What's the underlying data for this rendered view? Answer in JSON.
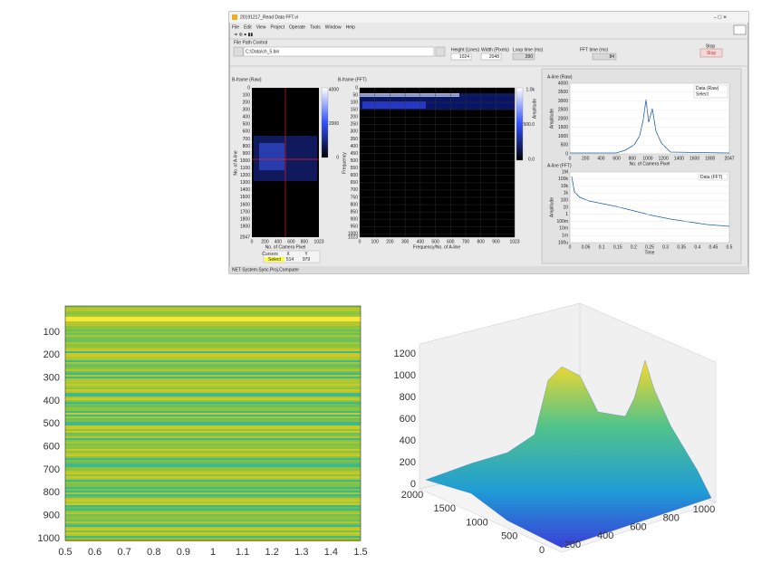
{
  "window": {
    "title": "20191217_Read Data FFT.vi",
    "menu": [
      "File",
      "Edit",
      "View",
      "Project",
      "Operate",
      "Tools",
      "Window",
      "Help"
    ],
    "status": "NET System.Sync.Proj.Computer"
  },
  "controls": {
    "file_path_label": "File Path Control",
    "file_path": "C:\\Data\\ch_5.bin",
    "height_label": "Height (Lines)",
    "height": 1024,
    "width_label": "Width (Pixels)",
    "width": 2048,
    "loop_label": "Loop time (ms)",
    "loop": 280,
    "fft_label": "FFT time (ms)",
    "fft": 84,
    "stop_label": "Stop",
    "stop_button": "Stop"
  },
  "bframe_raw": {
    "title": "B-frame (Raw)",
    "xlabel": "No. of Camera Pixel",
    "ylabel": "No. of A-line",
    "xticks": [
      0,
      200,
      400,
      600,
      800,
      1023
    ],
    "yticks": [
      0,
      100,
      200,
      300,
      400,
      500,
      600,
      700,
      800,
      900,
      1000,
      1100,
      1200,
      1300,
      1400,
      1500,
      1600,
      1700,
      1800,
      1900,
      2047
    ],
    "colorbar": [
      4000,
      2000,
      0
    ],
    "cursor": {
      "header": [
        "Cursors",
        "X",
        "Y"
      ],
      "name": "Select",
      "x": 514,
      "y": 979
    }
  },
  "bframe_fft": {
    "title": "B-frame (FFT)",
    "xlabel": "Frequency/No. of A-line",
    "ylabel": "Frequency",
    "xticks": [
      0,
      100,
      200,
      300,
      400,
      500,
      600,
      700,
      800,
      900,
      1023
    ],
    "yticks": [
      0,
      50,
      100,
      150,
      200,
      250,
      300,
      350,
      400,
      450,
      500,
      550,
      600,
      650,
      700,
      750,
      800,
      850,
      900,
      950,
      1000,
      1023
    ],
    "colorbar": [
      "1.0k",
      "500.0",
      "0.0"
    ],
    "colorbar_label": "Amplitude"
  },
  "aline_raw": {
    "title": "A-line (Raw)",
    "xlabel": "No. of Camera Pixel",
    "ylabel": "Amplitude",
    "xticks": [
      0,
      200,
      400,
      600,
      800,
      1000,
      1200,
      1400,
      1600,
      1800,
      2047
    ],
    "yticks": [
      4000,
      3500,
      3000,
      2500,
      2000,
      1500,
      1000,
      500,
      0
    ],
    "legend": [
      "Data (Raw)",
      "Select"
    ]
  },
  "aline_fft": {
    "title": "A-line (FFT)",
    "xlabel": "Time",
    "ylabel": "Amplitude",
    "xticks": [
      0,
      0.05,
      0.1,
      0.15,
      0.2,
      0.25,
      0.3,
      0.35,
      0.4,
      0.45,
      0.5
    ],
    "yticks": [
      "1M",
      "100k",
      "10k",
      "1k",
      "100",
      "10",
      "1",
      "100m",
      "10m",
      "1m",
      "100u"
    ],
    "legend": [
      "Data (FFT)"
    ]
  },
  "image_plot": {
    "xticks": [
      0.5,
      0.6,
      0.7,
      0.8,
      0.9,
      1,
      1.1,
      1.2,
      1.3,
      1.4,
      1.5
    ],
    "yticks": [
      100,
      200,
      300,
      400,
      500,
      600,
      700,
      800,
      900,
      1000
    ]
  },
  "surface_plot": {
    "zticks": [
      0,
      200,
      400,
      600,
      800,
      1000,
      1200
    ],
    "yticks": [
      0,
      500,
      1000,
      1500,
      2000
    ],
    "xticks": [
      200,
      400,
      600,
      800,
      1000
    ]
  }
}
